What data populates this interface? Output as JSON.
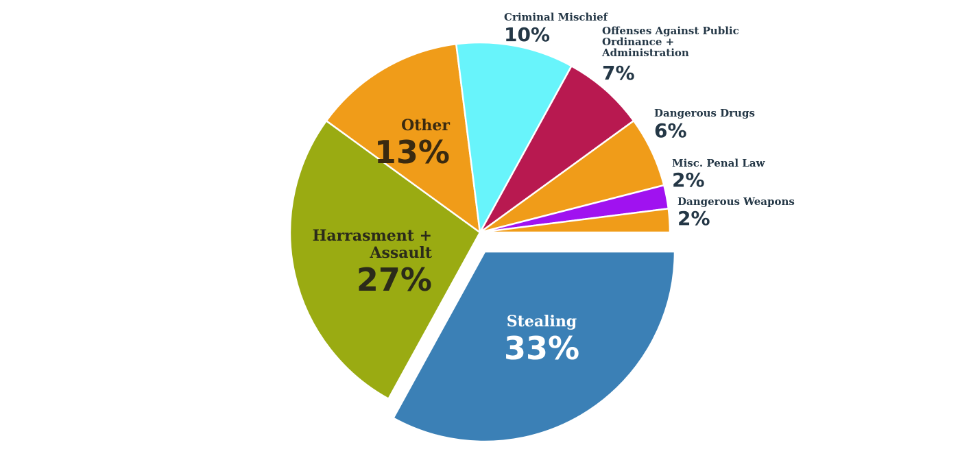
{
  "chart_data": {
    "type": "pie",
    "title": "",
    "slices": [
      {
        "label": "Stealing",
        "label_lines": [
          "Stealing"
        ],
        "value": 33,
        "pct_text": "33%",
        "color": "#3b80b6",
        "label_color": "#ffffff",
        "label_size": "big-light",
        "exploded": true
      },
      {
        "label": "Harrasment + Assault",
        "label_lines": [
          "Harrasment +",
          "Assault"
        ],
        "value": 27,
        "pct_text": "27%",
        "color": "#9aab12",
        "label_color": "#2b2b1a",
        "label_size": "big",
        "exploded": false
      },
      {
        "label": "Other",
        "label_lines": [
          "Other"
        ],
        "value": 13,
        "pct_text": "13%",
        "color": "#f09c19",
        "label_color": "#3a2a10",
        "label_size": "big",
        "exploded": false
      },
      {
        "label": "Criminal Mischief",
        "label_lines": [
          "Criminal Mischief"
        ],
        "value": 10,
        "pct_text": "10%",
        "color": "#68f4fb",
        "label_color": "#243746",
        "label_size": "small",
        "exploded": false
      },
      {
        "label": "Offenses Against Public Ordinance + Administration",
        "label_lines": [
          "Offenses Against Public",
          "Ordinance +",
          "Administration"
        ],
        "value": 7,
        "pct_text": "7%",
        "color": "#b81950",
        "label_color": "#243746",
        "label_size": "small",
        "exploded": false
      },
      {
        "label": "Dangerous Drugs",
        "label_lines": [
          "Dangerous Drugs"
        ],
        "value": 6,
        "pct_text": "6%",
        "color": "#f09c19",
        "label_color": "#243746",
        "label_size": "small",
        "exploded": false
      },
      {
        "label": "Misc. Penal Law",
        "label_lines": [
          "Misc. Penal Law"
        ],
        "value": 2,
        "pct_text": "2%",
        "color": "#a012f0",
        "label_color": "#243746",
        "label_size": "small",
        "exploded": false
      },
      {
        "label": "Dangerous Weapons",
        "label_lines": [
          "Dangerous Weapons"
        ],
        "value": 2,
        "pct_text": "2%",
        "color": "#f09c19",
        "label_color": "#243746",
        "label_size": "small",
        "exploded": false
      }
    ]
  }
}
